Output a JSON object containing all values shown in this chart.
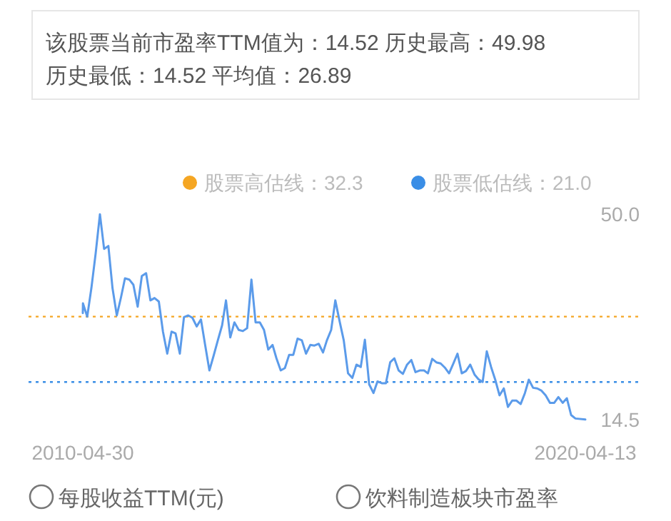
{
  "chart_data": {
    "type": "line",
    "title": "该股票当前市盈率TTM值为：14.52 历史最高：49.98",
    "subtitle": "历史最低：14.52 平均值：26.89",
    "x": [
      "2010-04-30",
      "2010-05",
      "2010-06",
      "2010-07",
      "2010-08",
      "2010-09",
      "2010-10",
      "2010-11",
      "2010-12",
      "2011-01",
      "2011-02",
      "2011-03",
      "2011-04",
      "2011-05",
      "2011-06",
      "2011-07",
      "2011-08",
      "2011-09",
      "2011-10",
      "2011-11",
      "2011-12",
      "2012-01",
      "2012-02",
      "2012-03",
      "2012-04",
      "2012-05",
      "2012-06",
      "2012-07",
      "2012-08",
      "2012-09",
      "2012-10",
      "2012-11",
      "2012-12",
      "2013-01",
      "2013-02",
      "2013-03",
      "2013-04",
      "2013-05",
      "2013-06",
      "2013-07",
      "2013-08",
      "2013-09",
      "2013-10",
      "2013-11",
      "2013-12",
      "2014-01",
      "2014-02",
      "2014-03",
      "2014-04",
      "2014-05",
      "2014-06",
      "2014-07",
      "2014-08",
      "2014-09",
      "2014-10",
      "2014-11",
      "2014-12",
      "2015-01",
      "2015-02",
      "2015-03",
      "2015-04",
      "2015-05",
      "2015-06",
      "2015-07",
      "2015-08",
      "2015-09",
      "2015-10",
      "2015-11",
      "2015-12",
      "2016-01",
      "2016-02",
      "2016-03",
      "2016-04",
      "2016-05",
      "2016-06",
      "2016-07",
      "2016-08",
      "2016-09",
      "2016-10",
      "2016-11",
      "2016-12",
      "2017-01",
      "2017-02",
      "2017-03",
      "2017-04",
      "2017-05",
      "2017-06",
      "2017-07",
      "2017-08",
      "2017-09",
      "2017-10",
      "2017-11",
      "2017-12",
      "2018-01",
      "2018-02",
      "2018-03",
      "2018-04",
      "2018-05",
      "2018-06",
      "2018-07",
      "2018-08",
      "2018-09",
      "2018-10",
      "2018-11",
      "2018-12",
      "2019-01",
      "2019-02",
      "2019-03",
      "2019-04",
      "2019-05",
      "2019-06",
      "2019-07",
      "2019-08",
      "2019-09",
      "2019-10",
      "2019-11",
      "2019-12",
      "2020-01",
      "2020-02",
      "2020-04-13"
    ],
    "values": [
      32.9,
      34.6,
      32.3,
      37.2,
      43.2,
      49.98,
      44.0,
      44.5,
      37.2,
      32.5,
      35.7,
      38.9,
      38.7,
      37.8,
      34.0,
      39.3,
      39.8,
      35.1,
      35.5,
      34.9,
      29.7,
      25.9,
      29.7,
      29.4,
      25.9,
      32.2,
      32.5,
      32.1,
      30.6,
      31.8,
      27.4,
      23.0,
      25.5,
      28.2,
      30.8,
      35.1,
      28.7,
      31.3,
      30.0,
      29.8,
      30.3,
      38.7,
      31.3,
      31.3,
      30.0,
      26.6,
      27.4,
      25.1,
      23.0,
      23.4,
      25.7,
      25.7,
      28.5,
      28.2,
      25.9,
      27.4,
      27.3,
      27.6,
      26.1,
      28.2,
      30.0,
      35.1,
      31.5,
      28.2,
      22.5,
      21.7,
      24.0,
      23.6,
      28.3,
      20.6,
      19.1,
      21.1,
      20.8,
      20.8,
      24.4,
      25.1,
      23.0,
      22.4,
      24.0,
      24.8,
      22.7,
      23.0,
      23.0,
      22.5,
      25.0,
      24.4,
      24.2,
      23.5,
      22.5,
      24.2,
      25.9,
      22.5,
      22.9,
      24.0,
      22.3,
      21.5,
      21.0,
      26.3,
      23.6,
      21.4,
      18.7,
      19.9,
      16.7,
      17.8,
      17.8,
      17.2,
      19.1,
      21.4,
      20.0,
      19.9,
      19.5,
      18.7,
      17.4,
      17.4,
      18.4,
      17.4,
      18.2,
      15.3,
      14.7,
      14.52
    ],
    "color": "#5b9bea",
    "xlim": [
      "2010-04-30",
      "2020-04-13"
    ],
    "xticks": [
      "2010-04-30",
      "2020-04-13"
    ],
    "ylim": [
      14.5,
      50
    ],
    "yticks": [
      {
        "value": 50,
        "label": "50.0"
      },
      {
        "value": 14.5,
        "label": "14.5"
      }
    ],
    "ref_lines": [
      {
        "axis": "y",
        "value": 32.3,
        "label": "股票高估线：32.3",
        "color": "#f5a623",
        "line_style": "dotted"
      },
      {
        "axis": "y",
        "value": 21.0,
        "label": "股票低估线：21.0",
        "color": "#3a8ee6",
        "line_style": "dotted"
      }
    ],
    "legend": "top right",
    "annotations": [
      "每股收益TTM(元)",
      "饮料制造板块市盈率"
    ]
  }
}
